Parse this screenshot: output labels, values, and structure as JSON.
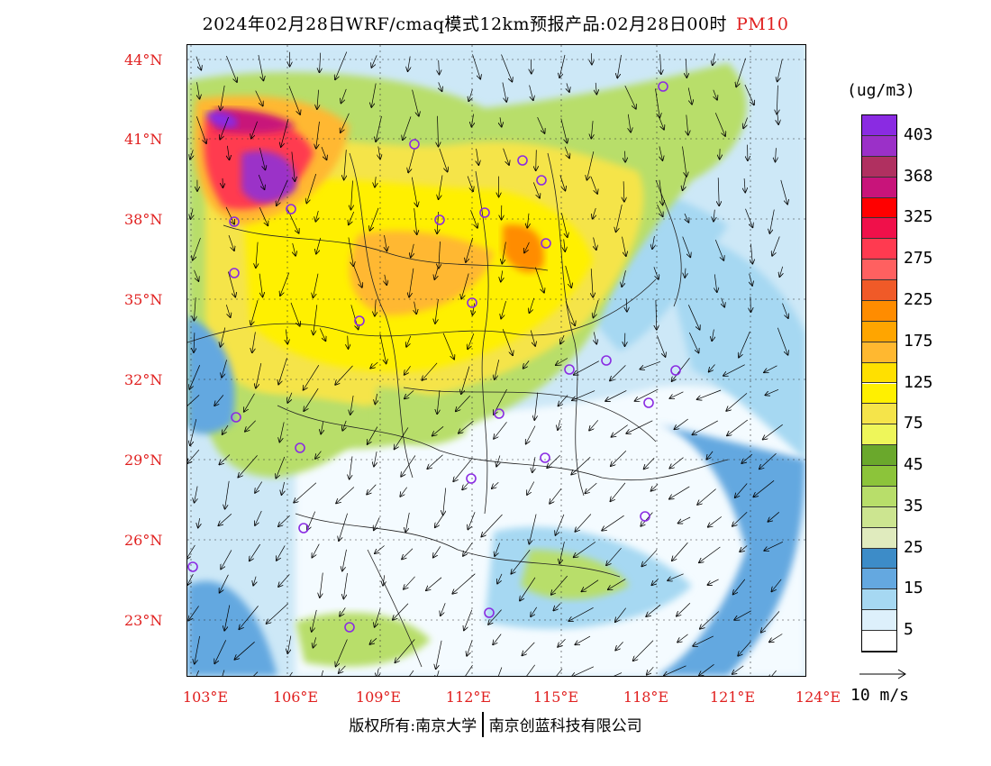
{
  "title": {
    "main": "2024年02月28日WRF/cmaq模式12km预报产品:02月28日00时",
    "variable": "PM10",
    "variable_color": "#e0201f"
  },
  "map": {
    "lat_labels": [
      "44°N",
      "41°N",
      "38°N",
      "35°N",
      "32°N",
      "29°N",
      "26°N",
      "23°N"
    ],
    "lon_labels": [
      "103°E",
      "106°E",
      "109°E",
      "112°E",
      "115°E",
      "118°E",
      "121°E",
      "124°E"
    ],
    "label_color": "#e0201f",
    "stations_marker": "circle",
    "station_color": "#8a2be2",
    "station_count": 26
  },
  "colorbar": {
    "unit": "(ug/m3)",
    "levels": [
      {
        "label": "403",
        "color": "#8a2be2"
      },
      {
        "label": "",
        "color": "#9b30c8"
      },
      {
        "label": "368",
        "color": "#b03060"
      },
      {
        "label": "",
        "color": "#c8147a"
      },
      {
        "label": "325",
        "color": "#ff0000"
      },
      {
        "label": "",
        "color": "#f0104a"
      },
      {
        "label": "275",
        "color": "#ff3a50"
      },
      {
        "label": "",
        "color": "#ff6060"
      },
      {
        "label": "225",
        "color": "#f05a28"
      },
      {
        "label": "",
        "color": "#ff8c00"
      },
      {
        "label": "175",
        "color": "#ffa500"
      },
      {
        "label": "",
        "color": "#ffb830"
      },
      {
        "label": "125",
        "color": "#ffe000"
      },
      {
        "label": "",
        "color": "#fff000"
      },
      {
        "label": "75",
        "color": "#f5e44a"
      },
      {
        "label": "",
        "color": "#eef65a"
      },
      {
        "label": "45",
        "color": "#6aa82c"
      },
      {
        "label": "",
        "color": "#8cc43a"
      },
      {
        "label": "35",
        "color": "#b8de6a"
      },
      {
        "label": "",
        "color": "#cce590"
      },
      {
        "label": "25",
        "color": "#e0ebbe"
      },
      {
        "label": "",
        "color": "#3d8cc8"
      },
      {
        "label": "15",
        "color": "#64a8e0"
      },
      {
        "label": "",
        "color": "#a6d8f2"
      },
      {
        "label": "5",
        "color": "#ddf0fb"
      },
      {
        "label": "",
        "color": "#ffffff"
      }
    ]
  },
  "wind_reference": {
    "label": "10 m/s"
  },
  "footer": {
    "left": "版权所有:南京大学",
    "right": "南京创蓝科技有限公司"
  }
}
